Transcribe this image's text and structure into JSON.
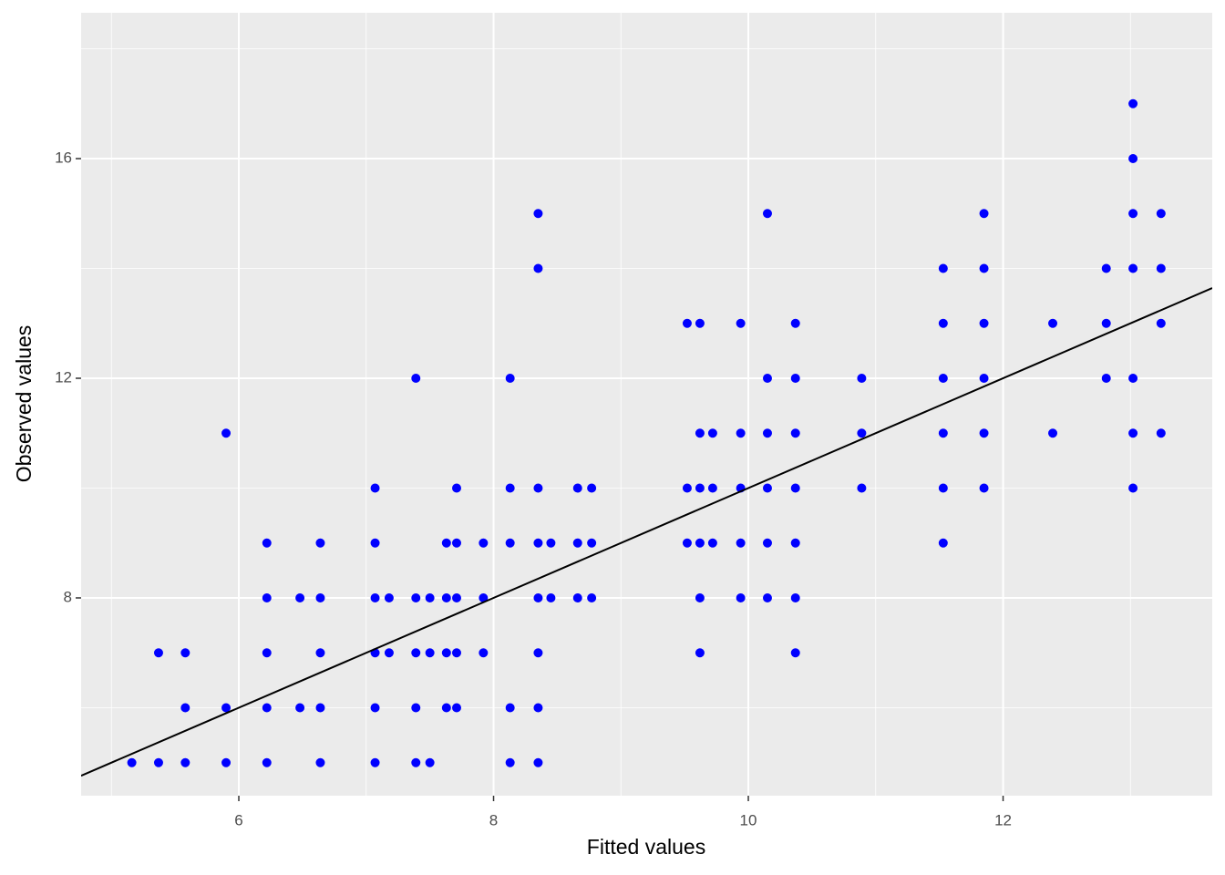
{
  "chart_data": {
    "type": "scatter",
    "x_label": "Fitted values",
    "y_label": "Observed values",
    "x": [
      5.16,
      5.37,
      5.37,
      5.58,
      5.58,
      5.58,
      5.9,
      5.9,
      5.9,
      6.22,
      6.22,
      6.22,
      6.22,
      6.22,
      6.48,
      6.48,
      6.64,
      6.64,
      6.64,
      6.64,
      6.64,
      7.07,
      7.07,
      7.07,
      7.07,
      7.07,
      7.07,
      7.18,
      7.18,
      7.39,
      7.39,
      7.39,
      7.39,
      7.39,
      7.5,
      7.5,
      7.5,
      7.63,
      7.63,
      7.63,
      7.63,
      7.71,
      7.71,
      7.71,
      7.71,
      7.71,
      7.92,
      7.92,
      7.92,
      8.13,
      8.13,
      8.13,
      8.13,
      8.13,
      8.35,
      8.35,
      8.35,
      8.35,
      8.35,
      8.35,
      8.35,
      8.35,
      8.45,
      8.45,
      8.66,
      8.66,
      8.66,
      8.77,
      8.77,
      8.77,
      9.52,
      9.52,
      9.52,
      9.62,
      9.62,
      9.62,
      9.62,
      9.62,
      9.62,
      9.72,
      9.72,
      9.72,
      9.94,
      9.94,
      9.94,
      9.94,
      9.94,
      10.15,
      10.15,
      10.15,
      10.15,
      10.15,
      10.15,
      10.37,
      10.37,
      10.37,
      10.37,
      10.37,
      10.37,
      10.37,
      10.89,
      10.89,
      10.89,
      11.53,
      11.53,
      11.53,
      11.53,
      11.53,
      11.53,
      11.85,
      11.85,
      11.85,
      11.85,
      11.85,
      11.85,
      12.39,
      12.39,
      12.81,
      12.81,
      12.81,
      13.02,
      13.02,
      13.02,
      13.02,
      13.02,
      13.02,
      13.02,
      13.24,
      13.24,
      13.24,
      13.24
    ],
    "values": [
      5,
      7,
      5,
      7,
      6,
      5,
      11,
      6,
      5,
      9,
      8,
      7,
      6,
      5,
      8,
      6,
      9,
      8,
      7,
      6,
      5,
      10,
      9,
      8,
      7,
      6,
      5,
      8,
      7,
      12,
      8,
      7,
      6,
      5,
      8,
      7,
      5,
      9,
      8,
      7,
      6,
      10,
      9,
      8,
      7,
      6,
      9,
      8,
      7,
      12,
      10,
      9,
      6,
      5,
      15,
      14,
      10,
      9,
      8,
      7,
      6,
      5,
      9,
      8,
      10,
      9,
      8,
      10,
      9,
      8,
      13,
      10,
      9,
      13,
      11,
      10,
      9,
      8,
      7,
      11,
      10,
      9,
      13,
      11,
      10,
      9,
      8,
      15,
      12,
      11,
      10,
      9,
      8,
      13,
      12,
      11,
      10,
      9,
      8,
      7,
      12,
      11,
      10,
      14,
      13,
      12,
      11,
      10,
      9,
      15,
      14,
      13,
      12,
      11,
      10,
      13,
      11,
      14,
      13,
      12,
      17,
      16,
      15,
      14,
      12,
      11,
      10,
      15,
      14,
      13,
      11
    ],
    "color": "#0000ff",
    "reference_line": {
      "slope": 1,
      "intercept": 0,
      "color": "#000000"
    },
    "xlim": [
      4.762,
      13.642
    ],
    "xticks": [
      6,
      8,
      10,
      12
    ],
    "xminor": [
      5,
      7,
      9,
      11,
      13
    ],
    "ylim": [
      4.398,
      18.656
    ],
    "yticks": [
      8,
      12,
      16
    ],
    "yminor": [
      6,
      10,
      14,
      18
    ],
    "grid": true
  }
}
